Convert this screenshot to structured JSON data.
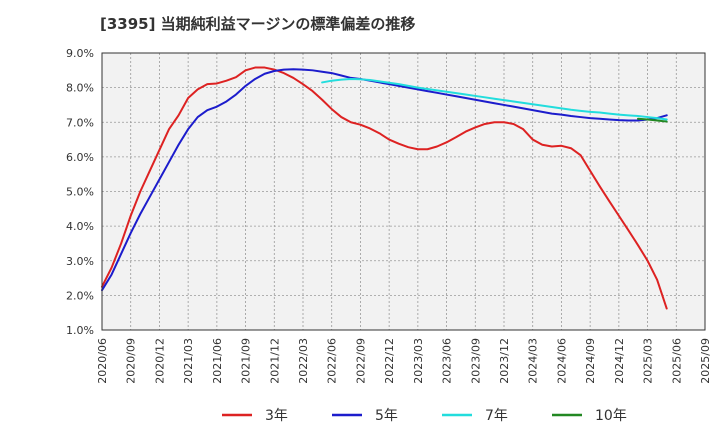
{
  "chart_data": {
    "type": "line",
    "title": "[3395]  当期純利益マージンの標準偏差の推移",
    "xlabel": "",
    "ylabel": "",
    "ylim": [
      1.0,
      9.0
    ],
    "ytick_labels": [
      "1.0%",
      "2.0%",
      "3.0%",
      "4.0%",
      "5.0%",
      "6.0%",
      "7.0%",
      "8.0%",
      "9.0%"
    ],
    "xtick_labels": [
      "2020/06",
      "2020/09",
      "2020/12",
      "2021/03",
      "2021/06",
      "2021/09",
      "2021/12",
      "2022/03",
      "2022/06",
      "2022/09",
      "2022/12",
      "2023/03",
      "2023/06",
      "2023/09",
      "2023/12",
      "2024/03",
      "2024/06",
      "2024/09",
      "2024/12",
      "2025/03",
      "2025/06",
      "2025/09"
    ],
    "grid": true,
    "legend_position": "bottom",
    "series": [
      {
        "name": "3年",
        "color": "#dd2222",
        "points": [
          [
            0,
            2.25
          ],
          [
            1,
            2.8
          ],
          [
            2,
            3.5
          ],
          [
            3,
            4.3
          ],
          [
            4,
            5.0
          ],
          [
            5,
            5.6
          ],
          [
            6,
            6.2
          ],
          [
            7,
            6.8
          ],
          [
            8,
            7.2
          ],
          [
            9,
            7.7
          ],
          [
            10,
            7.95
          ],
          [
            11,
            8.1
          ],
          [
            12,
            8.12
          ],
          [
            13,
            8.2
          ],
          [
            14,
            8.3
          ],
          [
            15,
            8.5
          ],
          [
            16,
            8.58
          ],
          [
            17,
            8.58
          ],
          [
            18,
            8.52
          ],
          [
            19,
            8.42
          ],
          [
            20,
            8.28
          ],
          [
            21,
            8.1
          ],
          [
            22,
            7.9
          ],
          [
            23,
            7.65
          ],
          [
            24,
            7.38
          ],
          [
            25,
            7.15
          ],
          [
            26,
            7.0
          ],
          [
            27,
            6.93
          ],
          [
            28,
            6.82
          ],
          [
            29,
            6.68
          ],
          [
            30,
            6.5
          ],
          [
            31,
            6.38
          ],
          [
            32,
            6.28
          ],
          [
            33,
            6.22
          ],
          [
            34,
            6.22
          ],
          [
            35,
            6.3
          ],
          [
            36,
            6.42
          ],
          [
            37,
            6.57
          ],
          [
            38,
            6.73
          ],
          [
            39,
            6.85
          ],
          [
            40,
            6.95
          ],
          [
            41,
            7.0
          ],
          [
            42,
            7.0
          ],
          [
            43,
            6.95
          ],
          [
            44,
            6.8
          ],
          [
            45,
            6.5
          ],
          [
            46,
            6.35
          ],
          [
            47,
            6.3
          ],
          [
            48,
            6.32
          ],
          [
            49,
            6.25
          ],
          [
            50,
            6.05
          ],
          [
            51,
            5.6
          ],
          [
            52,
            5.15
          ],
          [
            53,
            4.72
          ],
          [
            54,
            4.3
          ],
          [
            55,
            3.88
          ],
          [
            56,
            3.45
          ],
          [
            57,
            3.0
          ],
          [
            58,
            2.45
          ],
          [
            59,
            1.62
          ]
        ]
      },
      {
        "name": "5年",
        "color": "#1c1ccc",
        "points": [
          [
            0,
            2.15
          ],
          [
            1,
            2.6
          ],
          [
            2,
            3.2
          ],
          [
            3,
            3.8
          ],
          [
            4,
            4.35
          ],
          [
            5,
            4.85
          ],
          [
            6,
            5.35
          ],
          [
            7,
            5.85
          ],
          [
            8,
            6.35
          ],
          [
            9,
            6.8
          ],
          [
            10,
            7.15
          ],
          [
            11,
            7.35
          ],
          [
            12,
            7.45
          ],
          [
            13,
            7.6
          ],
          [
            14,
            7.8
          ],
          [
            15,
            8.05
          ],
          [
            16,
            8.25
          ],
          [
            17,
            8.4
          ],
          [
            18,
            8.48
          ],
          [
            19,
            8.52
          ],
          [
            20,
            8.53
          ],
          [
            21,
            8.52
          ],
          [
            22,
            8.5
          ],
          [
            23,
            8.46
          ],
          [
            24,
            8.42
          ],
          [
            25,
            8.35
          ],
          [
            26,
            8.28
          ],
          [
            27,
            8.25
          ],
          [
            28,
            8.2
          ],
          [
            29,
            8.15
          ],
          [
            30,
            8.1
          ],
          [
            31,
            8.05
          ],
          [
            32,
            8.0
          ],
          [
            33,
            7.95
          ],
          [
            34,
            7.9
          ],
          [
            35,
            7.85
          ],
          [
            36,
            7.8
          ],
          [
            37,
            7.75
          ],
          [
            38,
            7.7
          ],
          [
            39,
            7.65
          ],
          [
            40,
            7.6
          ],
          [
            41,
            7.55
          ],
          [
            42,
            7.5
          ],
          [
            43,
            7.45
          ],
          [
            44,
            7.4
          ],
          [
            45,
            7.35
          ],
          [
            46,
            7.3
          ],
          [
            47,
            7.25
          ],
          [
            48,
            7.22
          ],
          [
            49,
            7.18
          ],
          [
            50,
            7.15
          ],
          [
            51,
            7.12
          ],
          [
            52,
            7.1
          ],
          [
            53,
            7.08
          ],
          [
            54,
            7.06
          ],
          [
            55,
            7.05
          ],
          [
            56,
            7.05
          ],
          [
            57,
            7.08
          ],
          [
            58,
            7.12
          ],
          [
            59,
            7.2
          ]
        ]
      },
      {
        "name": "7年",
        "color": "#22dddd",
        "points": [
          [
            23,
            8.15
          ],
          [
            24,
            8.2
          ],
          [
            25,
            8.23
          ],
          [
            26,
            8.25
          ],
          [
            27,
            8.24
          ],
          [
            28,
            8.22
          ],
          [
            29,
            8.18
          ],
          [
            30,
            8.14
          ],
          [
            31,
            8.1
          ],
          [
            32,
            8.05
          ],
          [
            33,
            8.0
          ],
          [
            34,
            7.96
          ],
          [
            35,
            7.92
          ],
          [
            36,
            7.88
          ],
          [
            37,
            7.84
          ],
          [
            38,
            7.8
          ],
          [
            39,
            7.76
          ],
          [
            40,
            7.72
          ],
          [
            41,
            7.68
          ],
          [
            42,
            7.64
          ],
          [
            43,
            7.6
          ],
          [
            44,
            7.56
          ],
          [
            45,
            7.52
          ],
          [
            46,
            7.48
          ],
          [
            47,
            7.44
          ],
          [
            48,
            7.4
          ],
          [
            49,
            7.36
          ],
          [
            50,
            7.33
          ],
          [
            51,
            7.3
          ],
          [
            52,
            7.28
          ],
          [
            53,
            7.25
          ],
          [
            54,
            7.22
          ],
          [
            55,
            7.2
          ],
          [
            56,
            7.18
          ],
          [
            57,
            7.15
          ],
          [
            58,
            7.12
          ],
          [
            59,
            7.08
          ]
        ]
      },
      {
        "name": "10年",
        "color": "#228822",
        "points": [
          [
            56,
            7.1
          ],
          [
            57,
            7.08
          ],
          [
            58,
            7.05
          ],
          [
            59,
            7.02
          ]
        ]
      }
    ]
  }
}
